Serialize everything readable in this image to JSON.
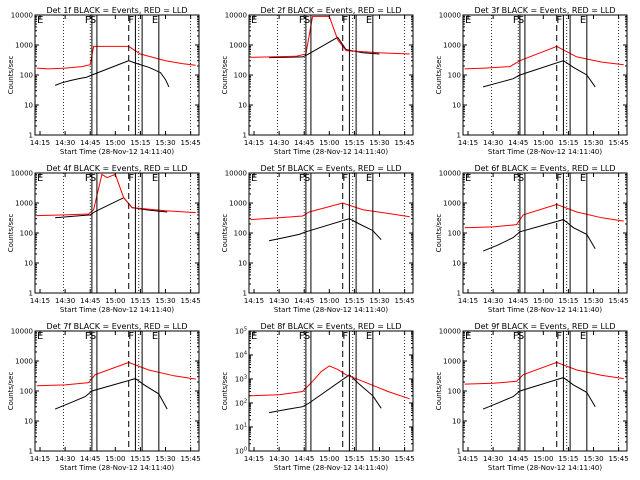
{
  "figure": {
    "time_range": [
      "14:12",
      "15:50"
    ],
    "time_ticks": [
      "14:15",
      "14:30",
      "14:45",
      "15:00",
      "15:15",
      "15:30",
      "15:45"
    ],
    "y_ticks": [
      "1",
      "10",
      "100",
      "1000",
      "10000"
    ],
    "y_ticks_8f": [
      "10^0",
      "10^1",
      "10^2",
      "10^3",
      "10^4",
      "10^5"
    ],
    "ylabel": "Counts/sec",
    "xlabel": "Start Time (28-Nov-12 14:11:40)",
    "colors": {
      "events": "#000000",
      "lld": "#ff0000"
    },
    "vertical_lines": [
      {
        "time": "14:46",
        "label": "F",
        "style": "solid"
      },
      {
        "time": "14:49",
        "label": "S",
        "style": "solid"
      },
      {
        "time": "15:08",
        "label": "",
        "style": "dashed"
      },
      {
        "time": "15:12",
        "label": "F",
        "style": "solid"
      },
      {
        "time": "15:16",
        "label": "",
        "style": "solid"
      },
      {
        "time": "15:26",
        "label": "E",
        "style": "solid"
      }
    ],
    "dotted_lines": [
      "14:29",
      "14:45",
      "15:14",
      "15:45"
    ]
  },
  "chart_data": [
    {
      "type": "line",
      "title": "Det 1f BLACK = Events, RED = LLD",
      "xlabel": "Start Time (28-Nov-12 14:11:40)",
      "ylabel": "Counts/sec",
      "yscale": "log",
      "ylim": [
        1,
        10000
      ],
      "series": [
        {
          "name": "Events",
          "x": [
            "14:24",
            "14:28",
            "14:33",
            "14:38",
            "14:43",
            "14:46",
            "15:08",
            "15:12",
            "15:20",
            "15:27",
            "15:30",
            "15:32"
          ],
          "y": [
            45,
            55,
            65,
            75,
            85,
            100,
            300,
            250,
            180,
            120,
            70,
            40
          ]
        },
        {
          "name": "LLD",
          "x": [
            "14:13",
            "14:20",
            "14:30",
            "14:40",
            "14:45",
            "14:47",
            "15:08",
            "15:15",
            "15:30",
            "15:40",
            "15:48"
          ],
          "y": [
            170,
            160,
            170,
            190,
            220,
            900,
            900,
            500,
            300,
            240,
            210
          ]
        }
      ]
    },
    {
      "type": "line",
      "title": "Det 2f BLACK = Events, RED = LLD",
      "xlabel": "Start Time (28-Nov-12 14:11:40)",
      "ylabel": "Counts/sec",
      "yscale": "log",
      "ylim": [
        1,
        10000
      ],
      "series": [
        {
          "name": "Events",
          "x": [
            "14:24",
            "14:35",
            "14:44",
            "14:47",
            "15:05",
            "15:10",
            "15:20",
            "15:30"
          ],
          "y": [
            380,
            390,
            400,
            480,
            1800,
            700,
            550,
            500
          ]
        },
        {
          "name": "LLD",
          "x": [
            "14:13",
            "14:25",
            "14:40",
            "14:46",
            "14:50",
            "15:00",
            "15:05",
            "15:10",
            "15:30",
            "15:48"
          ],
          "y": [
            390,
            400,
            420,
            500,
            9000,
            9000,
            1500,
            650,
            550,
            500
          ]
        }
      ]
    },
    {
      "type": "line",
      "title": "Det 3f BLACK = Events, RED = LLD",
      "xlabel": "Start Time (28-Nov-12 14:11:40)",
      "ylabel": "Counts/sec",
      "yscale": "log",
      "ylim": [
        1,
        10000
      ],
      "series": [
        {
          "name": "Events",
          "x": [
            "14:24",
            "14:33",
            "14:42",
            "14:46",
            "15:12",
            "15:18",
            "15:26",
            "15:31"
          ],
          "y": [
            40,
            55,
            75,
            100,
            300,
            180,
            100,
            40
          ]
        },
        {
          "name": "LLD",
          "x": [
            "14:13",
            "14:25",
            "14:40",
            "14:46",
            "15:08",
            "15:20",
            "15:35",
            "15:48"
          ],
          "y": [
            160,
            170,
            190,
            300,
            900,
            400,
            270,
            220
          ]
        }
      ]
    },
    {
      "type": "line",
      "title": "Det 4f BLACK = Events, RED = LLD",
      "xlabel": "Start Time (28-Nov-12 14:11:40)",
      "ylabel": "Counts/sec",
      "yscale": "log",
      "ylim": [
        1,
        10000
      ],
      "series": [
        {
          "name": "Events",
          "x": [
            "14:24",
            "14:35",
            "14:45",
            "14:48",
            "15:05",
            "15:10",
            "15:20",
            "15:31"
          ],
          "y": [
            320,
            360,
            400,
            520,
            1500,
            700,
            580,
            500
          ]
        },
        {
          "name": "LLD",
          "x": [
            "14:13",
            "14:30",
            "14:44",
            "14:47",
            "14:52",
            "14:55",
            "15:00",
            "15:05",
            "15:10",
            "15:30",
            "15:48"
          ],
          "y": [
            380,
            400,
            430,
            600,
            9000,
            7000,
            9000,
            1500,
            700,
            550,
            480
          ]
        }
      ]
    },
    {
      "type": "line",
      "title": "Det 5f BLACK = Events, RED = LLD",
      "xlabel": "Start Time (28-Nov-12 14:11:40)",
      "ylabel": "Counts/sec",
      "yscale": "log",
      "ylim": [
        1,
        10000
      ],
      "series": [
        {
          "name": "Events",
          "x": [
            "14:24",
            "14:33",
            "14:42",
            "14:46",
            "15:12",
            "15:18",
            "15:26",
            "15:31"
          ],
          "y": [
            55,
            70,
            90,
            110,
            300,
            200,
            120,
            60
          ]
        },
        {
          "name": "LLD",
          "x": [
            "14:13",
            "14:30",
            "14:44",
            "14:48",
            "15:08",
            "15:20",
            "15:35",
            "15:48"
          ],
          "y": [
            280,
            320,
            370,
            500,
            1000,
            600,
            450,
            350
          ]
        }
      ]
    },
    {
      "type": "line",
      "title": "Det 6f BLACK = Events, RED = LLD",
      "xlabel": "Start Time (28-Nov-12 14:11:40)",
      "ylabel": "Counts/sec",
      "yscale": "log",
      "ylim": [
        1,
        10000
      ],
      "series": [
        {
          "name": "Events",
          "x": [
            "14:24",
            "14:33",
            "14:42",
            "14:46",
            "15:12",
            "15:18",
            "15:26",
            "15:31"
          ],
          "y": [
            25,
            40,
            70,
            110,
            280,
            150,
            90,
            30
          ]
        },
        {
          "name": "LLD",
          "x": [
            "14:13",
            "14:30",
            "14:44",
            "14:48",
            "15:08",
            "15:20",
            "15:35",
            "15:48"
          ],
          "y": [
            150,
            160,
            190,
            400,
            900,
            500,
            320,
            250
          ]
        }
      ]
    },
    {
      "type": "line",
      "title": "Det 7f BLACK = Events, RED = LLD",
      "xlabel": "Start Time (28-Nov-12 14:11:40)",
      "ylabel": "Counts/sec",
      "yscale": "log",
      "ylim": [
        1,
        10000
      ],
      "series": [
        {
          "name": "Events",
          "x": [
            "14:24",
            "14:33",
            "14:42",
            "14:46",
            "15:12",
            "15:18",
            "15:26",
            "15:31"
          ],
          "y": [
            25,
            40,
            65,
            100,
            260,
            150,
            80,
            25
          ]
        },
        {
          "name": "LLD",
          "x": [
            "14:13",
            "14:30",
            "14:44",
            "14:48",
            "15:08",
            "15:20",
            "15:35",
            "15:48"
          ],
          "y": [
            150,
            160,
            190,
            350,
            900,
            500,
            320,
            250
          ]
        }
      ]
    },
    {
      "type": "line",
      "title": "Det 8f BLACK = Events, RED = LLD",
      "xlabel": "Start Time (28-Nov-12 14:11:40)",
      "ylabel": "Counts/sec",
      "yscale": "log",
      "ylim": [
        1,
        100000
      ],
      "series": [
        {
          "name": "Events",
          "x": [
            "14:24",
            "14:35",
            "14:44",
            "14:48",
            "15:12",
            "15:18",
            "15:26",
            "15:31"
          ],
          "y": [
            40,
            55,
            70,
            100,
            1500,
            600,
            200,
            60
          ]
        },
        {
          "name": "LLD",
          "x": [
            "14:13",
            "14:30",
            "14:44",
            "14:50",
            "14:55",
            "15:00",
            "15:05",
            "15:10",
            "15:20",
            "15:35",
            "15:48"
          ],
          "y": [
            200,
            220,
            300,
            800,
            2000,
            3500,
            2500,
            1500,
            800,
            300,
            150
          ]
        }
      ]
    },
    {
      "type": "line",
      "title": "Det 9f BLACK = Events, RED = LLD",
      "xlabel": "Start Time (28-Nov-12 14:11:40)",
      "ylabel": "Counts/sec",
      "yscale": "log",
      "ylim": [
        1,
        10000
      ],
      "series": [
        {
          "name": "Events",
          "x": [
            "14:24",
            "14:33",
            "14:42",
            "14:46",
            "15:12",
            "15:18",
            "15:26",
            "15:31"
          ],
          "y": [
            25,
            40,
            65,
            100,
            280,
            160,
            90,
            30
          ]
        },
        {
          "name": "LLD",
          "x": [
            "14:13",
            "14:30",
            "14:44",
            "14:48",
            "15:08",
            "15:20",
            "15:35",
            "15:48"
          ],
          "y": [
            170,
            180,
            210,
            350,
            900,
            500,
            330,
            260
          ]
        }
      ]
    }
  ]
}
